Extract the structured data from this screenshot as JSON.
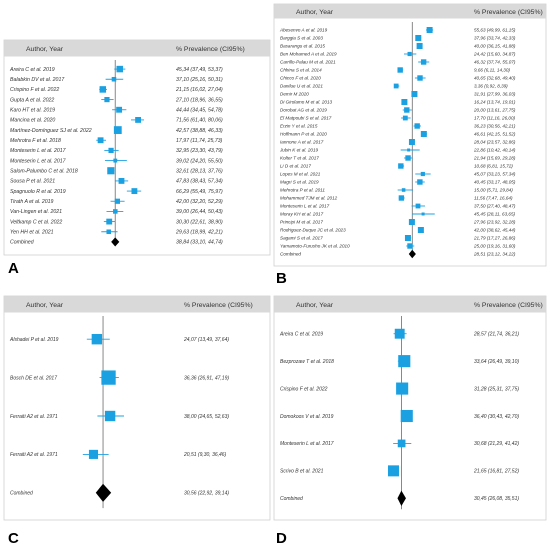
{
  "colors": {
    "square": "#1ba1e2",
    "ci": "#1ba1e2",
    "combined": "#000000",
    "header_bg": "#d9d9d9",
    "text": "#333333"
  },
  "chart_data": [
    {
      "type": "forest",
      "panel": "A",
      "header": {
        "left": "Author, Year",
        "right": "% Prevalence (CI95%)"
      },
      "xlim": [
        0,
        100
      ],
      "reference_line": 38.84,
      "studies": [
        {
          "label": "Areira C et al. 2019",
          "est": 45.34,
          "lo": 37.49,
          "hi": 53.37,
          "text": "45,34 (37,49, 53,37)",
          "w": 1.0
        },
        {
          "label": "Balabkin DV et al. 2017",
          "est": 37.1,
          "lo": 25.16,
          "hi": 50.31,
          "text": "37,10 (25,16, 50,31)",
          "w": 0.7
        },
        {
          "label": "Crispino F et al. 2022",
          "est": 21.15,
          "lo": 16.02,
          "hi": 27.04,
          "text": "21,15 (16,02, 27,04)",
          "w": 1.0
        },
        {
          "label": "Gupta A et al. 2022",
          "est": 27.1,
          "lo": 18.96,
          "hi": 36.55,
          "text": "27,10 (18,96, 36,55)",
          "w": 0.8
        },
        {
          "label": "Karo HT et al. 2019",
          "est": 44.44,
          "lo": 34.45,
          "hi": 54.78,
          "text": "44,44 (34,45, 54,78)",
          "w": 0.9
        },
        {
          "label": "Mancina et al. 2020",
          "est": 71.56,
          "lo": 61.4,
          "hi": 80.06,
          "text": "71,56 (61,40, 80,06)",
          "w": 0.9
        },
        {
          "label": "Martínez-Domínguez SJ et al. 2022",
          "est": 42.57,
          "lo": 38.88,
          "hi": 46.33,
          "text": "42,57 (38,88, 46,33)",
          "w": 1.2
        },
        {
          "label": "Mehrotra F et al. 2018",
          "est": 17.97,
          "lo": 11.74,
          "hi": 25.73,
          "text": "17,97 (11,74, 25,73)",
          "w": 0.9
        },
        {
          "label": "Monteserin L et al. 2017",
          "est": 32.95,
          "lo": 23.3,
          "hi": 43.79,
          "text": "32,95 (23,30, 43,79)",
          "w": 0.8
        },
        {
          "label": "Monteserin L et al. 2017",
          "est": 39.02,
          "lo": 24.2,
          "hi": 55.5,
          "text": "39,02 (24,20, 55,50)",
          "w": 0.6
        },
        {
          "label": "Salom-Palumbo C et al. 2018",
          "est": 32.61,
          "lo": 28.13,
          "hi": 37.76,
          "text": "32,61 (28,13, 37,76)",
          "w": 1.1
        },
        {
          "label": "Sousa P et al. 2021",
          "est": 47.83,
          "lo": 38.43,
          "hi": 57.34,
          "text": "47,83 (38,43, 57,34)",
          "w": 0.9
        },
        {
          "label": "Spagnuolo R et al. 2019",
          "est": 66.29,
          "lo": 55.49,
          "hi": 75.97,
          "text": "66,29 (55,49, 75,97)",
          "w": 0.9
        },
        {
          "label": "Tirath A et al. 2019",
          "est": 42.0,
          "lo": 32.2,
          "hi": 52.29,
          "text": "42,00 (32,20, 52,29)",
          "w": 0.8
        },
        {
          "label": "Van-Lingen et al. 2021",
          "est": 39.0,
          "lo": 26.44,
          "hi": 50.43,
          "text": "39,00 (26,44, 50,43)",
          "w": 0.7
        },
        {
          "label": "Veltkamp C et al. 2022",
          "est": 30.3,
          "lo": 22.61,
          "hi": 38.9,
          "text": "30,30 (22,61, 38,90)",
          "w": 0.9
        },
        {
          "label": "Yen HH et al. 2021",
          "est": 29.63,
          "lo": 18.99,
          "hi": 42.21,
          "text": "29,63 (18,99, 42,21)",
          "w": 0.7
        }
      ],
      "combined": {
        "label": "Combined",
        "est": 38.84,
        "lo": 33.1,
        "hi": 44.74,
        "text": "38,84 (33,10, 44,74)"
      }
    },
    {
      "type": "forest",
      "panel": "B",
      "header": {
        "left": "Author, Year",
        "right": "% Prevalence (CI95%)"
      },
      "xlim": [
        0,
        100
      ],
      "reference_line": 28.51,
      "studies": [
        {
          "label": "Abesenvo A et al. 2019",
          "est": 55.63,
          "lo": 49.99,
          "hi": 61.15,
          "text": "55,63 (49,99, 61,15)",
          "w": 1.0
        },
        {
          "label": "Barggia S et al. 2003",
          "est": 37.96,
          "lo": 33.74,
          "hi": 42.33,
          "text": "37,96 (33,74, 42,33)",
          "w": 1.0
        },
        {
          "label": "Basarangu et al. 2015",
          "est": 40.0,
          "lo": 36.15,
          "hi": 41.88,
          "text": "40,00 (36,15, 41,88)",
          "w": 1.0
        },
        {
          "label": "Ben Mohamed A et al. 2019",
          "est": 24.42,
          "lo": 15.6,
          "hi": 34.87,
          "text": "24,42 (15,60, 34,87)",
          "w": 0.7
        },
        {
          "label": "Carrillo-Palau M et al. 2021",
          "est": 46.32,
          "lo": 37.74,
          "hi": 55.07,
          "text": "46,32 (37,74, 55,07)",
          "w": 0.9
        },
        {
          "label": "Chhina S et al. 2014",
          "est": 9.66,
          "lo": 6.11,
          "hi": 14.3,
          "text": "9,66 (6,11, 14,30)",
          "w": 0.9
        },
        {
          "label": "Chicco F et al. 2020",
          "est": 40.65,
          "lo": 32.68,
          "hi": 49.4,
          "text": "40,65 (32,68, 49,40)",
          "w": 0.9
        },
        {
          "label": "Danilue U et al. 2021",
          "est": 3.36,
          "lo": 0.92,
          "hi": 8.39,
          "text": "3,36 (0,92, 8,39)",
          "w": 0.8
        },
        {
          "label": "Demir M 2020",
          "est": 31.91,
          "lo": 27.99,
          "hi": 36.03,
          "text": "31,91 (27,99, 36,03)",
          "w": 1.0
        },
        {
          "label": "Di Girolamo M et al. 2013",
          "est": 16.24,
          "lo": 13.74,
          "hi": 19.01,
          "text": "16,24 (13,74, 19,01)",
          "w": 1.0
        },
        {
          "label": "Dorobat AG et al. 2019",
          "est": 20.0,
          "lo": 13.61,
          "hi": 27.75,
          "text": "20,00 (13,61, 27,75)",
          "w": 0.9
        },
        {
          "label": "El Matpoubi S et al. 2017",
          "est": 17.7,
          "lo": 11.16,
          "hi": 26.0,
          "text": "17,70 (11,16, 26,00)",
          "w": 0.8
        },
        {
          "label": "Erzin Y et al. 2015",
          "est": 36.23,
          "lo": 30.56,
          "hi": 42.21,
          "text": "36,23 (30,56, 42,21)",
          "w": 0.9
        },
        {
          "label": "Hoffmann P et al. 2020",
          "est": 46.61,
          "lo": 42.15,
          "hi": 51.52,
          "text": "46,61 (42,15, 51,52)",
          "w": 1.0
        },
        {
          "label": "Iannone A et al. 2017",
          "est": 28.04,
          "lo": 23.57,
          "hi": 32.86,
          "text": "28,04 (23,57, 32,86)",
          "w": 1.0
        },
        {
          "label": "Jubin K et al. 2019",
          "est": 22.86,
          "lo": 10.42,
          "hi": 40.14,
          "text": "22,86 (10,42, 40,14)",
          "w": 0.5
        },
        {
          "label": "Kolter T et al. 2017",
          "est": 21.94,
          "lo": 15.69,
          "hi": 29.28,
          "text": "21,94 (15,69, 29,28)",
          "w": 0.9
        },
        {
          "label": "Li D et al. 2017",
          "est": 10.68,
          "lo": 6.81,
          "hi": 15.72,
          "text": "10,68 (6,81, 15,72)",
          "w": 0.9
        },
        {
          "label": "Lopes M et al. 2021",
          "est": 45.07,
          "lo": 33.23,
          "hi": 57.34,
          "text": "45,07 (33,23, 57,34)",
          "w": 0.7
        },
        {
          "label": "Magri S et al. 2019",
          "est": 40.45,
          "lo": 33.17,
          "hi": 48.05,
          "text": "40,45 (33,17, 48,05)",
          "w": 0.9
        },
        {
          "label": "Mehrotra P et al. 2011",
          "est": 15.0,
          "lo": 5.71,
          "hi": 29.84,
          "text": "15,00 (5,71, 29,84)",
          "w": 0.6
        },
        {
          "label": "Mohammed TJM et al. 2012",
          "est": 11.56,
          "lo": 7.47,
          "hi": 16.64,
          "text": "11,56 (7,47, 16,64)",
          "w": 0.9
        },
        {
          "label": "Monteserin L et al. 2017",
          "est": 37.5,
          "lo": 27.4,
          "hi": 48.47,
          "text": "37,50 (27,40, 48,47)",
          "w": 0.8
        },
        {
          "label": "Moray KH et al. 2017",
          "est": 45.45,
          "lo": 28.11,
          "hi": 63.65,
          "text": "45,45 (28,11, 63,65)",
          "w": 0.5
        },
        {
          "label": "Principi M et al. 2017",
          "est": 27.96,
          "lo": 23.92,
          "hi": 32.28,
          "text": "27,96 (23,92, 32,28)",
          "w": 1.0
        },
        {
          "label": "Rodriguez-Duque JC et al. 2023",
          "est": 42.0,
          "lo": 38.62,
          "hi": 45.44,
          "text": "42,00 (38,62, 45,44)",
          "w": 1.0
        },
        {
          "label": "Sagami S et al. 2017",
          "est": 21.79,
          "lo": 17.27,
          "hi": 26.86,
          "text": "21,79 (17,27, 26,86)",
          "w": 1.0
        },
        {
          "label": "Yamamoto-Furusho JK et al. 2010",
          "est": 25.0,
          "lo": 19.16,
          "hi": 31.6,
          "text": "25,00 (19,16, 31,60)",
          "w": 0.9
        }
      ],
      "combined": {
        "label": "Combined",
        "est": 28.51,
        "lo": 23.12,
        "hi": 34.22,
        "text": "28,51 (23,12, 34,22)"
      }
    },
    {
      "type": "forest",
      "panel": "C",
      "header": {
        "left": "Author, Year",
        "right": "% Prevalence (CI95%)"
      },
      "xlim": [
        0,
        100
      ],
      "reference_line": 30.56,
      "studies": [
        {
          "label": "Alshadei P et al. 2019",
          "est": 24.07,
          "lo": 13.49,
          "hi": 37.64,
          "text": "24,07 (13,49, 37,64)",
          "w": 0.8
        },
        {
          "label": "Bosch DE et al. 2017",
          "est": 36.36,
          "lo": 26.91,
          "hi": 47.19,
          "text": "36,36 (26,91, 47,19)",
          "w": 1.1
        },
        {
          "label": "Ferraiti A2 et al. 1971",
          "est": 38.0,
          "lo": 24.65,
          "hi": 52.63,
          "text": "38,00 (24,65, 52,63)",
          "w": 0.8
        },
        {
          "label": "Ferraiti A2 et al. 1971",
          "est": 20.51,
          "lo": 9.3,
          "hi": 36.46,
          "text": "20,51 (9,30, 36,46)",
          "w": 0.7
        }
      ],
      "combined": {
        "label": "Combined",
        "est": 30.56,
        "lo": 22.92,
        "hi": 39.14,
        "text": "30,56 (22,92, 39,14)"
      }
    },
    {
      "type": "forest",
      "panel": "D",
      "header": {
        "left": "Author, Year",
        "right": "% Prevalence (CI95%)"
      },
      "xlim": [
        0,
        100
      ],
      "reference_line": 30.45,
      "studies": [
        {
          "label": "Areira C et al. 2019",
          "est": 28.57,
          "lo": 21.74,
          "hi": 36.21,
          "text": "28,57 (21,74, 36,21)",
          "w": 0.9
        },
        {
          "label": "Bezprozaw T et al. 2018",
          "est": 33.64,
          "lo": 26.49,
          "hi": 39.1,
          "text": "33,64 (26,49, 39,10)",
          "w": 1.1
        },
        {
          "label": "Crispino F et al. 2022",
          "est": 31.28,
          "lo": 25.31,
          "hi": 37.75,
          "text": "31,28 (25,31, 37,75)",
          "w": 1.1
        },
        {
          "label": "Domokoos V et al. 2019",
          "est": 36.4,
          "lo": 30.43,
          "hi": 42.7,
          "text": "36,40 (30,43, 42,70)",
          "w": 1.1
        },
        {
          "label": "Monteserin L et al. 2017",
          "est": 30.68,
          "lo": 21.29,
          "hi": 41.42,
          "text": "30,68 (21,29, 41,42)",
          "w": 0.7
        },
        {
          "label": "Scrivo B et al. 2021",
          "est": 21.65,
          "lo": 16.81,
          "hi": 27.52,
          "text": "21,65 (16,81, 27,52)",
          "w": 1.0
        }
      ],
      "combined": {
        "label": "Combined",
        "est": 30.45,
        "lo": 26.08,
        "hi": 35.51,
        "text": "30,45 (26,08, 35,51)"
      }
    }
  ]
}
